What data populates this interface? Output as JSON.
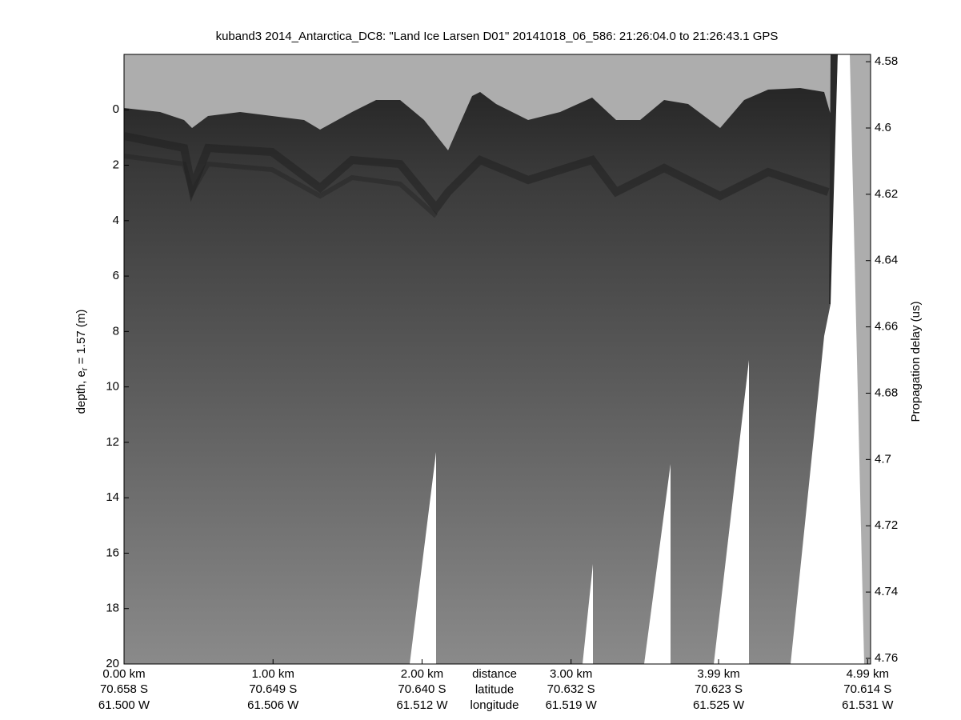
{
  "chart_data": {
    "type": "echogram",
    "title": "kuband3 2014_Antarctica_DC8: \"Land Ice Larsen D01\"  20141018_06_586: 21:26:04.0 to 21:26:43.1 GPS",
    "ylabel_parts": [
      "depth, e",
      "r",
      " = 1.57 (m)"
    ],
    "y2label": "Propagation delay (us)",
    "x_label_lines": [
      "distance",
      "latitude",
      "longitude"
    ],
    "xlim": [
      0,
      5.01
    ],
    "xticks": [
      {
        "value": 0,
        "label": "0.00 km"
      },
      {
        "value": 1,
        "label": "1.00 km"
      },
      {
        "value": 2,
        "label": "2.00 km"
      },
      {
        "value": 3,
        "label": "3.00 km"
      },
      {
        "value": 3.99,
        "label": "3.99 km"
      },
      {
        "value": 4.99,
        "label": "4.99 km"
      }
    ],
    "latitude_labels": [
      "70.658 S",
      "70.649 S",
      "70.640 S",
      "70.632 S",
      "70.623 S",
      "70.614 S"
    ],
    "longitude_labels": [
      "61.500 W",
      "61.506 W",
      "61.512 W",
      "61.519 W",
      "61.525 W",
      "61.531 W"
    ],
    "ylim": [
      20,
      -2
    ],
    "yticks": [
      0,
      2,
      4,
      6,
      8,
      10,
      12,
      14,
      16,
      18,
      20
    ],
    "y2lim": [
      4.7617,
      4.5778
    ],
    "y2ticks": [
      4.58,
      4.6,
      4.62,
      4.64,
      4.66,
      4.68,
      4.7,
      4.72,
      4.74,
      4.76
    ]
  }
}
